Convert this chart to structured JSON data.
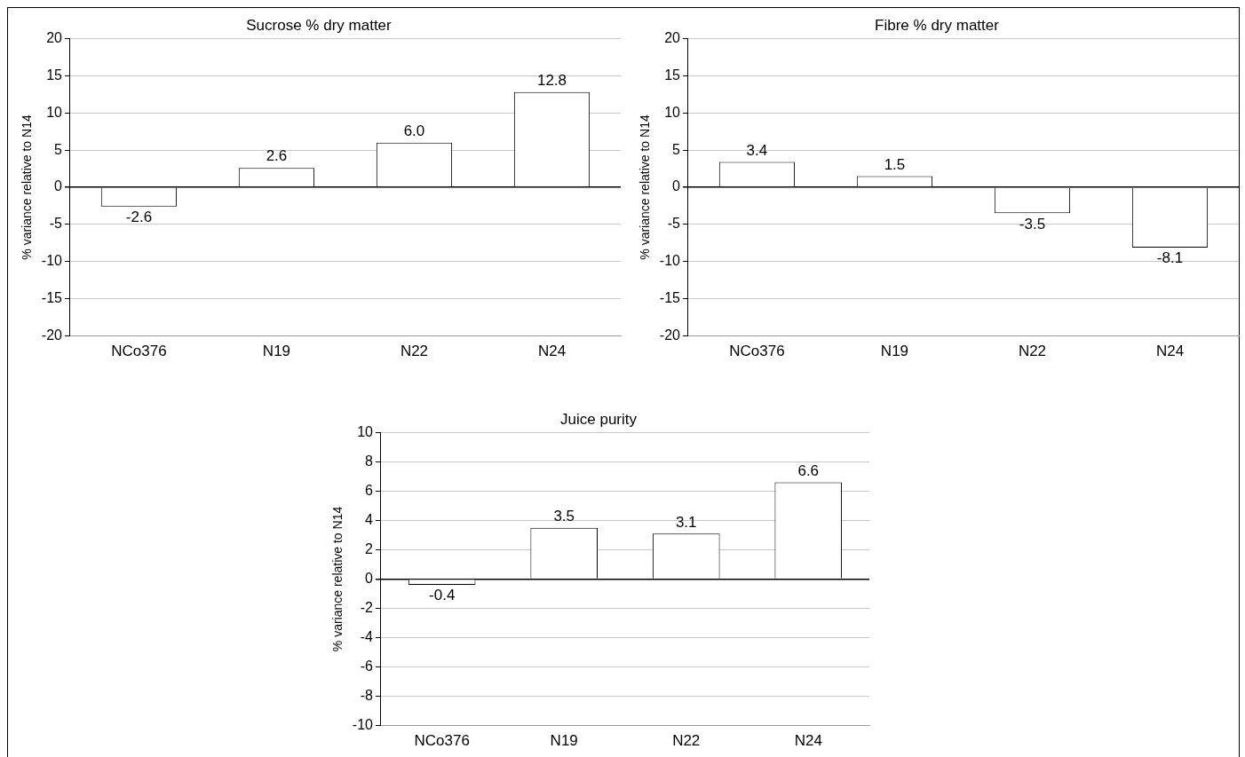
{
  "chart_data": [
    {
      "type": "bar",
      "title": "Sucrose % dry matter",
      "ylabel": "% variance relative to N14",
      "categories": [
        "NCo376",
        "N19",
        "N22",
        "N24"
      ],
      "values": [
        -2.6,
        2.6,
        6.0,
        12.8
      ],
      "value_labels": [
        "-2.6",
        "2.6",
        "6.0",
        "12.8"
      ],
      "color": "#ffffff",
      "ylim": [
        -20,
        20
      ],
      "yticks": [
        -20,
        -15,
        -10,
        -5,
        0,
        5,
        10,
        15,
        20
      ],
      "grid": "y"
    },
    {
      "type": "bar",
      "title": "Fibre % dry matter",
      "ylabel": "% variance relative to N14",
      "categories": [
        "NCo376",
        "N19",
        "N22",
        "N24"
      ],
      "values": [
        3.4,
        1.5,
        -3.5,
        -8.1
      ],
      "value_labels": [
        "3.4",
        "1.5",
        "-3.5",
        "-8.1"
      ],
      "color": "#ffffff",
      "ylim": [
        -20,
        20
      ],
      "yticks": [
        -20,
        -15,
        -10,
        -5,
        0,
        5,
        10,
        15,
        20
      ],
      "grid": "y"
    },
    {
      "type": "bar",
      "title": "Juice purity",
      "ylabel": "% variance relative to N14",
      "categories": [
        "NCo376",
        "N19",
        "N22",
        "N24"
      ],
      "values": [
        -0.4,
        3.5,
        3.1,
        6.6
      ],
      "value_labels": [
        "-0.4",
        "3.5",
        "3.1",
        "6.6"
      ],
      "color": "#ffffff",
      "ylim": [
        -10,
        10
      ],
      "yticks": [
        -10,
        -8,
        -6,
        -4,
        -2,
        0,
        2,
        4,
        6,
        8,
        10
      ],
      "grid": "y"
    }
  ]
}
